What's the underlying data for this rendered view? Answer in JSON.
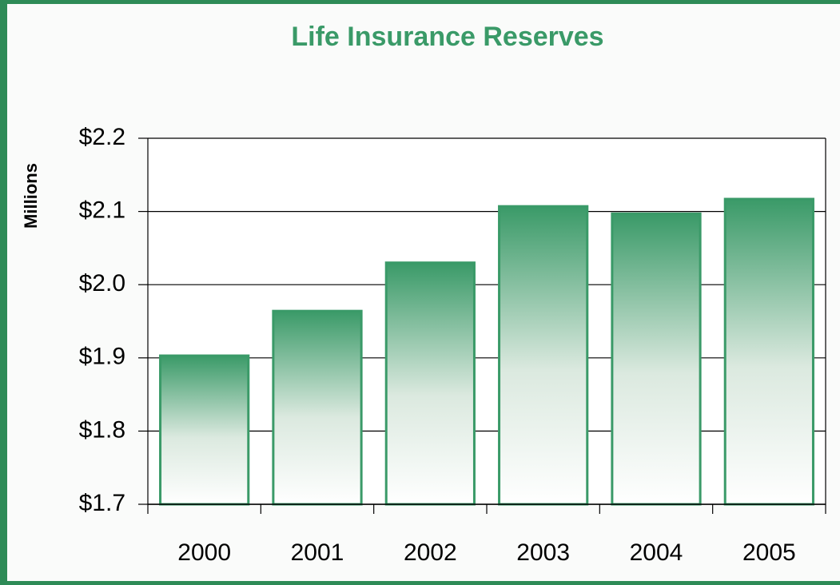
{
  "chart_data": {
    "type": "bar",
    "title": "Life Insurance Reserves",
    "y_label": "Millions",
    "categories": [
      "2000",
      "2001",
      "2002",
      "2003",
      "2004",
      "2005"
    ],
    "values": [
      1.903,
      1.964,
      2.03,
      2.107,
      2.097,
      2.117
    ],
    "color": "#3a9a68",
    "ylim": [
      1.7,
      2.2
    ],
    "yticks": [
      {
        "value": 1.7,
        "label": "$1.7"
      },
      {
        "value": 1.8,
        "label": "$1.8"
      },
      {
        "value": 1.9,
        "label": "$1.9"
      },
      {
        "value": 2.0,
        "label": "$2.0"
      },
      {
        "value": 2.1,
        "label": "$2.1"
      },
      {
        "value": 2.2,
        "label": "$2.2"
      }
    ],
    "grid": true
  }
}
